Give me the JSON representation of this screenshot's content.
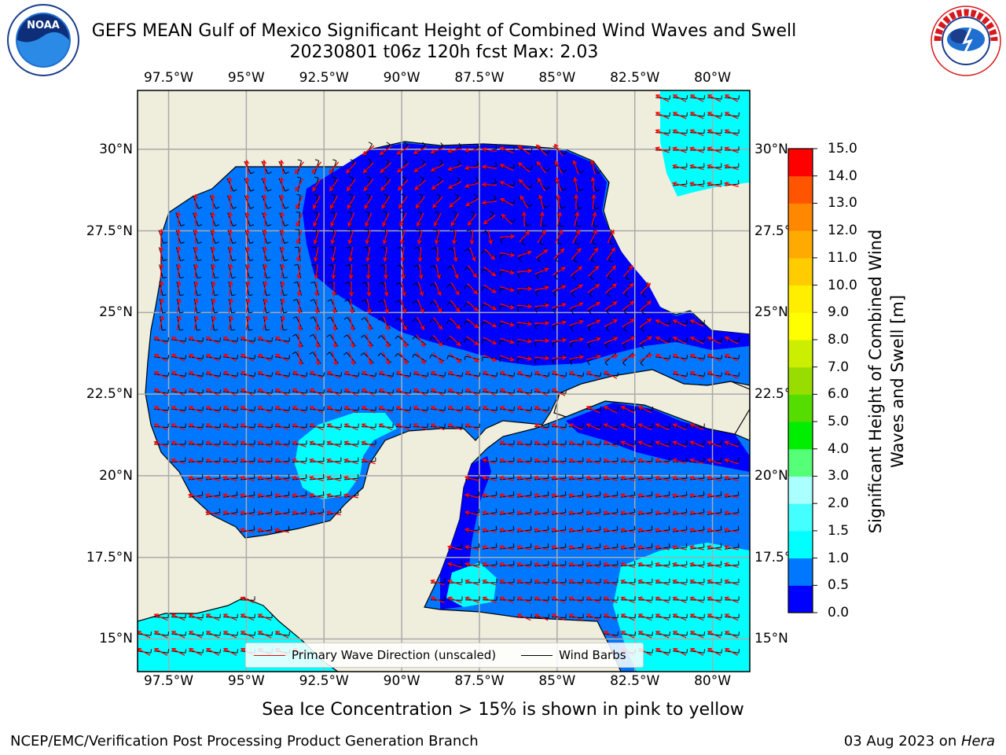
{
  "title": {
    "line1": "GEFS MEAN Gulf of Mexico Significant Height of Combined Wind Waves and Swell",
    "line2": "20230801 t06z 120h fcst   Max: 2.03"
  },
  "map": {
    "lon_min": -98.5,
    "lon_max": -78.8,
    "lat_min": 14.0,
    "lat_max": 31.8,
    "lon_ticks": [
      "97.5°W",
      "95°W",
      "92.5°W",
      "90°W",
      "87.5°W",
      "85°W",
      "82.5°W",
      "80°W"
    ],
    "lon_values": [
      -97.5,
      -95,
      -92.5,
      -90,
      -87.5,
      -85,
      -82.5,
      -80
    ],
    "lat_ticks": [
      "30°N",
      "27.5°N",
      "25°N",
      "22.5°N",
      "20°N",
      "17.5°N",
      "15°N"
    ],
    "lat_values": [
      30,
      27.5,
      25,
      22.5,
      20,
      17.5,
      15
    ],
    "grid": true,
    "land_color": "#efeddc",
    "wave_color": "#ff0000",
    "barb_color": "#000000"
  },
  "colorbar": {
    "label": "Significant Height of Combined Wind Waves and Swell [m]",
    "ticks": [
      "15.0",
      "14.0",
      "13.0",
      "12.0",
      "11.0",
      "10.0",
      "9.0",
      "8.0",
      "7.0",
      "6.0",
      "5.0",
      "4.0",
      "3.0",
      "2.0",
      "1.5",
      "1.0",
      "0.5",
      "0.0"
    ],
    "levels": [
      0,
      0.5,
      1.0,
      1.5,
      2.0,
      3.0,
      4.0,
      5.0,
      6.0,
      7.0,
      8.0,
      9.0,
      10.0,
      11.0,
      12.0,
      13.0,
      14.0,
      15.0
    ],
    "colors": [
      "#0000ff",
      "#0077ff",
      "#00ffff",
      "#44ffff",
      "#aaffff",
      "#55ff77",
      "#00ee00",
      "#55dd00",
      "#99dd00",
      "#ccee00",
      "#ffff00",
      "#ffee00",
      "#ffcc00",
      "#ffaa00",
      "#ff8800",
      "#ff5500",
      "#ff0000"
    ]
  },
  "legend": {
    "wave_label": "Primary Wave Direction (unscaled)",
    "barb_label": "Wind Barbs"
  },
  "ice_note": "Sea Ice Concentration > 15% is shown in pink to yellow",
  "footer": {
    "left": "NCEP/EMC/Verification Post Processing Product Generation Branch",
    "date": "03 Aug 2023 on ",
    "machine": "Hera"
  },
  "logos": {
    "noaa_text": "NOAA",
    "nws_text": "NATIONAL WEATHER SERVICE"
  }
}
